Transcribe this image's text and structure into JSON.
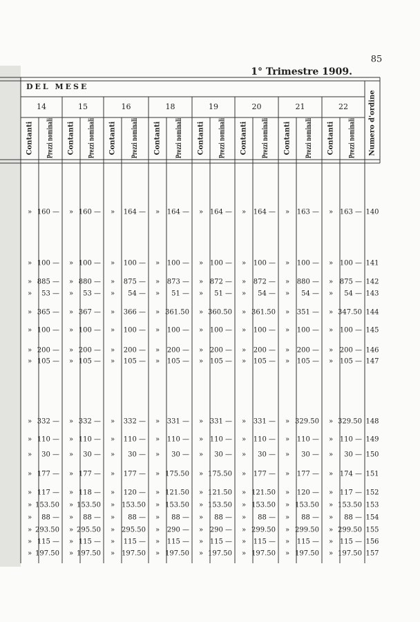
{
  "page_number": "85",
  "header": {
    "title": "1° Trimestre 1909.",
    "section": "DEL MESE"
  },
  "table": {
    "days": [
      "14",
      "15",
      "16",
      "18",
      "19",
      "20",
      "21",
      "22"
    ],
    "sub_headers": [
      "Contanti",
      "Prezzi nominali"
    ],
    "number_header": "Numero d'ordine",
    "rows": [
      {
        "number": "140",
        "cells": [
          [
            "»",
            "160 —"
          ],
          [
            "»",
            "160 —"
          ],
          [
            "»",
            "164 —"
          ],
          [
            "»",
            "164 —"
          ],
          [
            "»",
            "164 —"
          ],
          [
            "»",
            "164 —"
          ],
          [
            "»",
            "163 —"
          ],
          [
            "»",
            "163 —"
          ]
        ]
      },
      {
        "number": "141",
        "cells": [
          [
            "»",
            "100 —"
          ],
          [
            "»",
            "100 —"
          ],
          [
            "»",
            "100 —"
          ],
          [
            "»",
            "100 —"
          ],
          [
            "»",
            "100 —"
          ],
          [
            "»",
            "100 —"
          ],
          [
            "»",
            "100 —"
          ],
          [
            "»",
            "100 —"
          ]
        ]
      },
      {
        "number": "142",
        "cells": [
          [
            "»",
            "885 —"
          ],
          [
            "»",
            "880 —"
          ],
          [
            "»",
            "875 —"
          ],
          [
            "»",
            "873 —"
          ],
          [
            "»",
            "872 —"
          ],
          [
            "»",
            "872 —"
          ],
          [
            "»",
            "880 —"
          ],
          [
            "»",
            "875 —"
          ]
        ]
      },
      {
        "number": "143",
        "cells": [
          [
            "»",
            "53 —"
          ],
          [
            "»",
            "53 —"
          ],
          [
            "»",
            "54 —"
          ],
          [
            "»",
            "51 —"
          ],
          [
            "»",
            "51 —"
          ],
          [
            "»",
            "54 —"
          ],
          [
            "»",
            "54 —"
          ],
          [
            "»",
            "54 —"
          ]
        ]
      },
      {
        "number": "144",
        "cells": [
          [
            "»",
            "365 —"
          ],
          [
            "»",
            "367 —"
          ],
          [
            "»",
            "366 —"
          ],
          [
            "»",
            "361.50"
          ],
          [
            "»",
            "360.50"
          ],
          [
            "»",
            "361.50"
          ],
          [
            "»",
            "351 —"
          ],
          [
            "»",
            "347.50"
          ]
        ]
      },
      {
        "number": "145",
        "cells": [
          [
            "»",
            "100 —"
          ],
          [
            "»",
            "100 —"
          ],
          [
            "»",
            "100 —"
          ],
          [
            "»",
            "100 —"
          ],
          [
            "»",
            "100 —"
          ],
          [
            "»",
            "100 —"
          ],
          [
            "»",
            "100 —"
          ],
          [
            "»",
            "100 —"
          ]
        ]
      },
      {
        "number": "146",
        "cells": [
          [
            "»",
            "200 —"
          ],
          [
            "»",
            "200 —"
          ],
          [
            "»",
            "200 —"
          ],
          [
            "»",
            "200 —"
          ],
          [
            "»",
            "200 —"
          ],
          [
            "»",
            "200 —"
          ],
          [
            "»",
            "200 —"
          ],
          [
            "»",
            "200 —"
          ]
        ]
      },
      {
        "number": "147",
        "cells": [
          [
            "»",
            "105 —"
          ],
          [
            "»",
            "105 —"
          ],
          [
            "»",
            "105 —"
          ],
          [
            "»",
            "105 —"
          ],
          [
            "»",
            "105 —"
          ],
          [
            "»",
            "105 —"
          ],
          [
            "»",
            "105 —"
          ],
          [
            "»",
            "105 —"
          ]
        ]
      },
      {
        "number": "148",
        "cells": [
          [
            "»",
            "332 —"
          ],
          [
            "»",
            "332 —"
          ],
          [
            "»",
            "332 —"
          ],
          [
            "»",
            "331 —"
          ],
          [
            "»",
            "331 —"
          ],
          [
            "»",
            "331 —"
          ],
          [
            "»",
            "329.50"
          ],
          [
            "»",
            "329.50"
          ]
        ]
      },
      {
        "number": "149",
        "cells": [
          [
            "»",
            "110 —"
          ],
          [
            "»",
            "110 —"
          ],
          [
            "»",
            "110 —"
          ],
          [
            "»",
            "110 —"
          ],
          [
            "»",
            "110 —"
          ],
          [
            "»",
            "110 —"
          ],
          [
            "»",
            "110 —"
          ],
          [
            "»",
            "110 —"
          ]
        ]
      },
      {
        "number": "150",
        "cells": [
          [
            "»",
            "30 —"
          ],
          [
            "»",
            "30 —"
          ],
          [
            "»",
            "30 —"
          ],
          [
            "»",
            "30 —"
          ],
          [
            "»",
            "30 —"
          ],
          [
            "»",
            "30 —"
          ],
          [
            "»",
            "30 —"
          ],
          [
            "»",
            "30 —"
          ]
        ]
      },
      {
        "number": "151",
        "cells": [
          [
            "»",
            "177 —"
          ],
          [
            "»",
            "177 —"
          ],
          [
            "»",
            "177 —"
          ],
          [
            "»",
            "175.50"
          ],
          [
            "»",
            "175.50"
          ],
          [
            "»",
            "177 —"
          ],
          [
            "»",
            "177 —"
          ],
          [
            "»",
            "174 —"
          ]
        ]
      },
      {
        "number": "152",
        "cells": [
          [
            "»",
            "117 —"
          ],
          [
            "»",
            "118 —"
          ],
          [
            "»",
            "120 —"
          ],
          [
            "»",
            "121.50"
          ],
          [
            "»",
            "121.50"
          ],
          [
            "»",
            "121.50"
          ],
          [
            "»",
            "120 —"
          ],
          [
            "»",
            "117 —"
          ]
        ]
      },
      {
        "number": "153",
        "cells": [
          [
            "»",
            "153.50"
          ],
          [
            "»",
            "153.50"
          ],
          [
            "»",
            "153.50"
          ],
          [
            "»",
            "153.50"
          ],
          [
            "»",
            "153.50"
          ],
          [
            "»",
            "153.50"
          ],
          [
            "»",
            "153.50"
          ],
          [
            "»",
            "153.50"
          ]
        ]
      },
      {
        "number": "154",
        "cells": [
          [
            "»",
            "88 —"
          ],
          [
            "»",
            "88 —"
          ],
          [
            "»",
            "88 —"
          ],
          [
            "»",
            "88 —"
          ],
          [
            "»",
            "88 —"
          ],
          [
            "»",
            "88 —"
          ],
          [
            "»",
            "88 —"
          ],
          [
            "»",
            "88 —"
          ]
        ]
      },
      {
        "number": "155",
        "cells": [
          [
            "»",
            "293.50"
          ],
          [
            "»",
            "295.50"
          ],
          [
            "»",
            "295.50"
          ],
          [
            "»",
            "290 —"
          ],
          [
            "»",
            "290 —"
          ],
          [
            "»",
            "299.50"
          ],
          [
            "»",
            "299.50"
          ],
          [
            "»",
            "299.50"
          ]
        ]
      },
      {
        "number": "156",
        "cells": [
          [
            "»",
            "115 —"
          ],
          [
            "»",
            "115 —"
          ],
          [
            "»",
            "115 —"
          ],
          [
            "»",
            "115 —"
          ],
          [
            "»",
            "115 —"
          ],
          [
            "»",
            "115 —"
          ],
          [
            "»",
            "115 —"
          ],
          [
            "»",
            "115 —"
          ]
        ]
      },
      {
        "number": "157",
        "cells": [
          [
            "»",
            "197.50"
          ],
          [
            "»",
            "197.50"
          ],
          [
            "»",
            "197.50"
          ],
          [
            "»",
            "197.50"
          ],
          [
            "»",
            "197.50"
          ],
          [
            "»",
            "197.50"
          ],
          [
            "»",
            "197.50"
          ],
          [
            "»",
            "197.50"
          ]
        ]
      }
    ]
  }
}
